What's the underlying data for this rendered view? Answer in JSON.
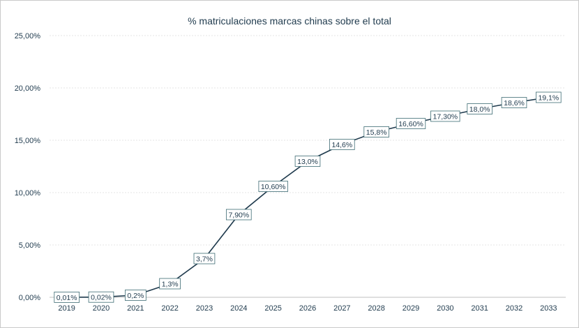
{
  "chart_data": {
    "type": "line",
    "title": "% matriculaciones marcas chinas sobre el total",
    "xlabel": "",
    "ylabel": "",
    "categories": [
      "2019",
      "2020",
      "2021",
      "2022",
      "2023",
      "2024",
      "2025",
      "2026",
      "2027",
      "2028",
      "2029",
      "2030",
      "2031",
      "2032",
      "2033"
    ],
    "series": [
      {
        "values": [
          0.01,
          0.02,
          0.2,
          1.3,
          3.7,
          7.9,
          10.6,
          13.0,
          14.6,
          15.8,
          16.6,
          17.3,
          18.0,
          18.6,
          19.1
        ],
        "labels": [
          "0,01%",
          "0,02%",
          "0,2%",
          "1,3%",
          "3,7%",
          "7,90%",
          "10,60%",
          "13,0%",
          "14,6%",
          "15,8%",
          "16,60%",
          "17,30%",
          "18,0%",
          "18,6%",
          "19,1%"
        ]
      }
    ],
    "ylim": [
      0,
      25
    ],
    "yticks": [
      0,
      5,
      10,
      15,
      20,
      25
    ],
    "ytick_labels": [
      "0,00%",
      "5,00%",
      "10,00%",
      "15,00%",
      "20,00%",
      "25,00%"
    ],
    "grid": true,
    "legend": "none",
    "colors": {
      "line": "#1f3a4d",
      "text": "#1f3a4d",
      "label_border": "#3d6b73",
      "grid": "#e6e6e6"
    }
  }
}
